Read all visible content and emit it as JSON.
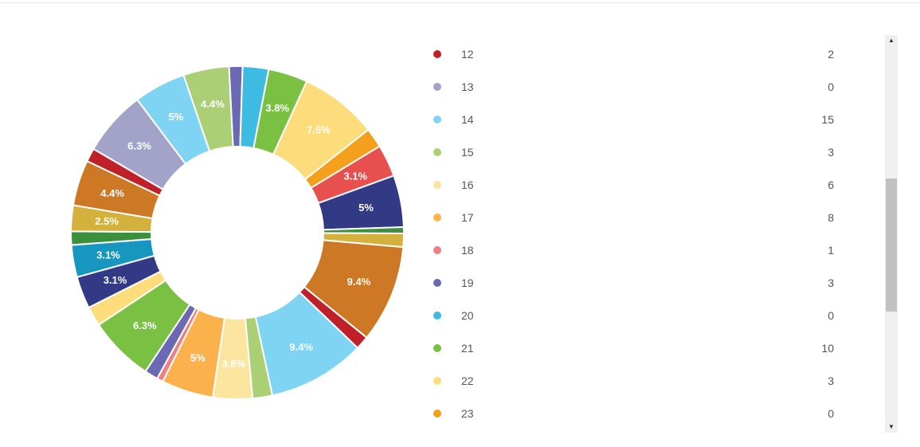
{
  "chart_data": {
    "type": "pie",
    "donut": true,
    "slices": [
      {
        "value": 1.3,
        "color": "#6b68b4",
        "label": ""
      },
      {
        "value": 2.5,
        "color": "#3dbbe2",
        "label": ""
      },
      {
        "value": 3.8,
        "color": "#7ac143",
        "label": "3.8%"
      },
      {
        "value": 7.5,
        "color": "#fddd7b",
        "label": "7.5%"
      },
      {
        "value": 1.9,
        "color": "#f5a01d",
        "label": ""
      },
      {
        "value": 3.1,
        "color": "#e85050",
        "label": "3.1%"
      },
      {
        "value": 5.0,
        "color": "#323a85",
        "label": "5%"
      },
      {
        "value": 0.6,
        "color": "#3c8f3d",
        "label": ""
      },
      {
        "value": 1.3,
        "color": "#d4b13c",
        "label": ""
      },
      {
        "value": 9.4,
        "color": "#cc7824",
        "label": "9.4%"
      },
      {
        "value": 1.3,
        "color": "#c02129",
        "label": ""
      },
      {
        "value": 9.4,
        "color": "#7fd3f3",
        "label": "9.4%"
      },
      {
        "value": 1.9,
        "color": "#aacf75",
        "label": ""
      },
      {
        "value": 3.8,
        "color": "#fbe59f",
        "label": "3.8%"
      },
      {
        "value": 5.0,
        "color": "#fbb24d",
        "label": "5%"
      },
      {
        "value": 0.6,
        "color": "#ef8081",
        "label": ""
      },
      {
        "value": 1.3,
        "color": "#6b68b4",
        "label": ""
      },
      {
        "value": 6.3,
        "color": "#7ac143",
        "label": "6.3%"
      },
      {
        "value": 1.9,
        "color": "#fddd7b",
        "label": ""
      },
      {
        "value": 3.1,
        "color": "#323a85",
        "label": "3.1%"
      },
      {
        "value": 3.1,
        "color": "#1797c0",
        "label": "3.1%"
      },
      {
        "value": 1.3,
        "color": "#3c8f3d",
        "label": ""
      },
      {
        "value": 2.5,
        "color": "#d4b13c",
        "label": "2.5%"
      },
      {
        "value": 4.4,
        "color": "#cc7824",
        "label": "4.4%"
      },
      {
        "value": 1.3,
        "color": "#c02129",
        "label": ""
      },
      {
        "value": 6.3,
        "color": "#a3a3c9",
        "label": "6.3%"
      },
      {
        "value": 5.0,
        "color": "#7fd3f3",
        "label": "5%"
      },
      {
        "value": 4.4,
        "color": "#aacf75",
        "label": "4.4%"
      }
    ]
  },
  "legend": {
    "items": [
      {
        "label": "12",
        "count": "2",
        "color": "#c02129"
      },
      {
        "label": "13",
        "count": "0",
        "color": "#a3a3c9"
      },
      {
        "label": "14",
        "count": "15",
        "color": "#7fd3f3"
      },
      {
        "label": "15",
        "count": "3",
        "color": "#aacf75"
      },
      {
        "label": "16",
        "count": "6",
        "color": "#fbe59f"
      },
      {
        "label": "17",
        "count": "8",
        "color": "#fbb24d"
      },
      {
        "label": "18",
        "count": "1",
        "color": "#ef8081"
      },
      {
        "label": "19",
        "count": "3",
        "color": "#6b68b4"
      },
      {
        "label": "20",
        "count": "0",
        "color": "#3dbbe2"
      },
      {
        "label": "21",
        "count": "10",
        "color": "#7ac143"
      },
      {
        "label": "22",
        "count": "3",
        "color": "#fddd7b"
      },
      {
        "label": "23",
        "count": "0",
        "color": "#f5a01d"
      }
    ]
  },
  "scrollbar": {
    "up_icon": "triangle-up",
    "down_icon": "triangle-down",
    "up_glyph": "▲",
    "down_glyph": "▼"
  }
}
